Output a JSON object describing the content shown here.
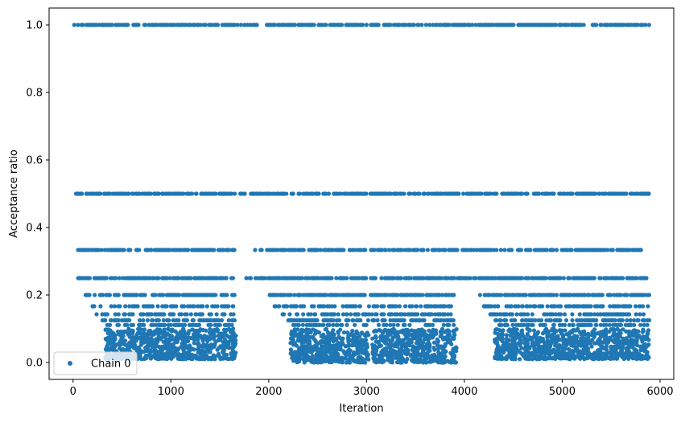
{
  "chart_data": {
    "type": "scatter",
    "title": "",
    "xlabel": "Iteration",
    "ylabel": "Acceptance ratio",
    "xlim": [
      -245,
      6140
    ],
    "ylim": [
      -0.05,
      1.05
    ],
    "xticks": [
      0,
      1000,
      2000,
      3000,
      4000,
      5000,
      6000
    ],
    "xtick_labels": [
      "0",
      "1000",
      "2000",
      "3000",
      "4000",
      "5000",
      "6000"
    ],
    "yticks": [
      0.0,
      0.2,
      0.4,
      0.6,
      0.8,
      1.0
    ],
    "ytick_labels": [
      "0.0",
      "0.2",
      "0.4",
      "0.6",
      "0.8",
      "1.0"
    ],
    "grid": false,
    "legend": {
      "position": "lower-left",
      "entries": [
        "Chain 0"
      ]
    },
    "series": [
      {
        "name": "Chain 0",
        "color": "#1f77b4",
        "marker": "circle",
        "levels": [
          {
            "y": 1.0,
            "segments": [
              [
                0,
                1660
              ],
              [
                1680,
                3000
              ],
              [
                3040,
                5890
              ]
            ]
          },
          {
            "y": 0.5,
            "segments": [
              [
                0,
                1650
              ],
              [
                1700,
                3000
              ],
              [
                3040,
                5890
              ]
            ]
          },
          {
            "y": 0.3333,
            "segments": [
              [
                50,
                1650
              ],
              [
                1860,
                3000
              ],
              [
                3040,
                5820
              ]
            ]
          },
          {
            "y": 0.25,
            "segments": [
              [
                50,
                1640
              ],
              [
                1760,
                3000
              ],
              [
                3040,
                5890
              ]
            ]
          },
          {
            "y": 0.2,
            "segments": [
              [
                110,
                1650
              ],
              [
                2000,
                3020
              ],
              [
                3040,
                3900
              ],
              [
                4150,
                5890
              ]
            ]
          },
          {
            "y": 0.1667,
            "segments": [
              [
                170,
                1650
              ],
              [
                2060,
                3030
              ],
              [
                3040,
                3900
              ],
              [
                4200,
                5890
              ]
            ]
          },
          {
            "y": 0.1429,
            "segments": [
              [
                240,
                1650
              ],
              [
                2140,
                3030
              ],
              [
                3040,
                3900
              ],
              [
                4260,
                5890
              ]
            ]
          },
          {
            "y": 0.125,
            "segments": [
              [
                290,
                1650
              ],
              [
                2170,
                3030
              ],
              [
                3040,
                3900
              ],
              [
                4290,
                5890
              ]
            ]
          },
          {
            "y": 0.1111,
            "segments": [
              [
                340,
                1650
              ],
              [
                2240,
                3030
              ],
              [
                3040,
                3900
              ],
              [
                4330,
                5890
              ]
            ]
          }
        ],
        "clusters": [
          {
            "x_range": [
              330,
              1665
            ],
            "y_range": [
              0.01,
              0.1
            ]
          },
          {
            "x_range": [
              2220,
              3020
            ],
            "y_range": [
              0.0,
              0.1
            ]
          },
          {
            "x_range": [
              3060,
              3920
            ],
            "y_range": [
              0.0,
              0.1
            ]
          },
          {
            "x_range": [
              4310,
              5890
            ],
            "y_range": [
              0.01,
              0.1
            ]
          }
        ],
        "approx_point_count": 5890
      }
    ]
  }
}
